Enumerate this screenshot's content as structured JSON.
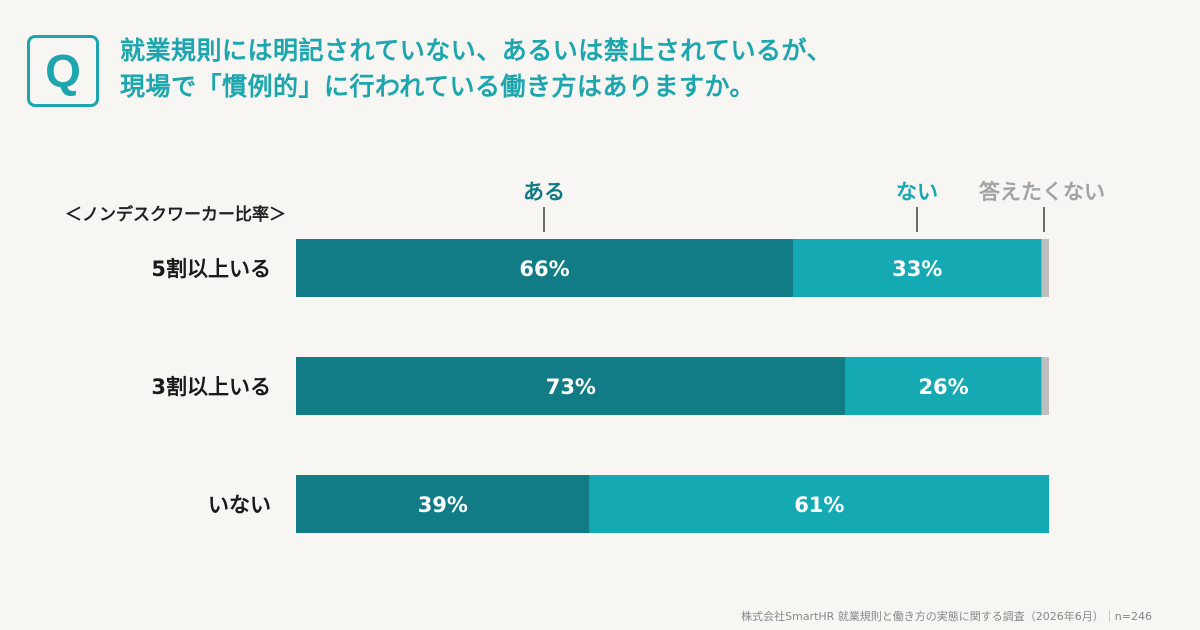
{
  "question": {
    "badge": "Q",
    "line1": "就業規則には明記されていない、あるいは禁止されているが、",
    "line2": "現場で「慣例的」に行われている働き方はありますか。"
  },
  "subgroup_label": "＜ノンデスクワーカー比率＞",
  "source": "株式会社SmartHR 就業規則と働き方の実態に関する調査（2026年6月）｜n=246",
  "colors": {
    "aru": "#117c85",
    "nai": "#15a9b3",
    "no_answer": "#bfbfbf",
    "legend_aru": "#117c85",
    "legend_nai": "#15a9b3",
    "legend_no_answer": "#a3a3a3"
  },
  "chart_data": {
    "type": "bar",
    "orientation": "horizontal",
    "stacked": true,
    "unit": "%",
    "categories": [
      "5割以上いる",
      "3割以上いる",
      "いない"
    ],
    "series": [
      {
        "name": "ある",
        "values": [
          66,
          73,
          39
        ],
        "labels": [
          "66%",
          "73%",
          "39%"
        ]
      },
      {
        "name": "ない",
        "values": [
          33,
          26,
          61
        ],
        "labels": [
          "33%",
          "26%",
          "61%"
        ]
      },
      {
        "name": "答えたくない",
        "values": [
          1,
          1,
          0
        ],
        "labels": [
          "",
          "",
          ""
        ]
      }
    ],
    "xlim": [
      0,
      100
    ],
    "legend": "top, above bars with leader lines"
  }
}
